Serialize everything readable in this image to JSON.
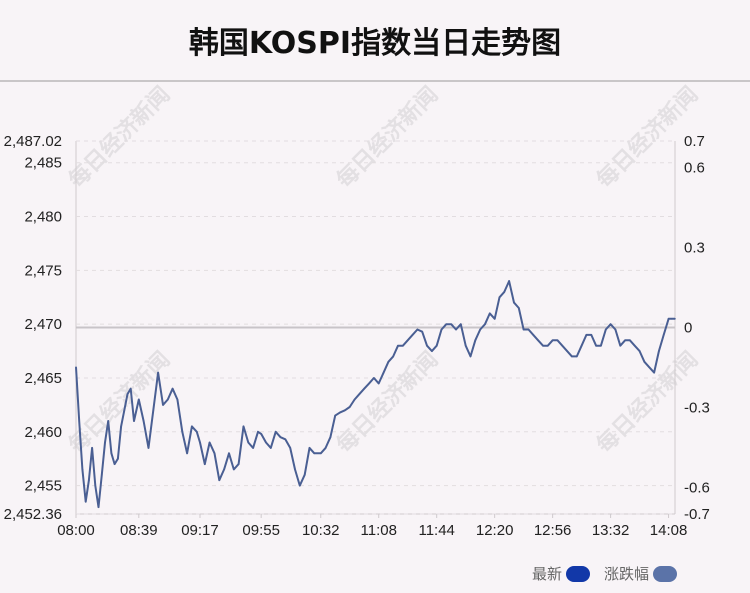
{
  "title": "韩国KOSPI指数当日走势图",
  "watermark": "每日经济新闻",
  "legend": [
    {
      "label": "最新",
      "color": "#1238a8"
    },
    {
      "label": "涨跌幅",
      "color": "#5b73a8"
    }
  ],
  "colors": {
    "line": "#4a5f93",
    "zero_line": "#c8c4c8",
    "grid": "#e2dde0"
  },
  "chart_data": {
    "type": "line",
    "title": "韩国KOSPI指数当日走势图",
    "x_tick_labels": [
      "08:00",
      "08:39",
      "09:17",
      "09:55",
      "10:32",
      "11:08",
      "11:44",
      "12:20",
      "12:56",
      "13:32",
      "14:08"
    ],
    "x_range": [
      "08:00",
      "14:12"
    ],
    "y_left_ticks": [
      "2,487.02",
      "2,485",
      "2,480",
      "2,475",
      "2,470",
      "2,465",
      "2,460",
      "2,455",
      "2,452.36"
    ],
    "y_left_range": [
      2452.36,
      2487.02
    ],
    "y_right_ticks": [
      "0.7",
      "0.6",
      "0.3",
      "0",
      "-0.3",
      "-0.6",
      "-0.7"
    ],
    "y_right_range": [
      -0.7,
      0.7
    ],
    "reference_level": 2469.69,
    "grid": true,
    "series": [
      {
        "name": "最新",
        "x": [
          "08:00",
          "08:02",
          "08:04",
          "08:06",
          "08:08",
          "08:10",
          "08:12",
          "08:14",
          "08:16",
          "08:18",
          "08:20",
          "08:22",
          "08:24",
          "08:26",
          "08:28",
          "08:30",
          "08:32",
          "08:34",
          "08:36",
          "08:39",
          "08:42",
          "08:45",
          "08:48",
          "08:51",
          "08:54",
          "08:57",
          "09:00",
          "09:03",
          "09:06",
          "09:09",
          "09:12",
          "09:15",
          "09:17",
          "09:20",
          "09:23",
          "09:26",
          "09:29",
          "09:32",
          "09:35",
          "09:38",
          "09:41",
          "09:44",
          "09:47",
          "09:50",
          "09:53",
          "09:55",
          "09:58",
          "10:01",
          "10:04",
          "10:07",
          "10:10",
          "10:13",
          "10:16",
          "10:19",
          "10:22",
          "10:25",
          "10:28",
          "10:32",
          "10:35",
          "10:38",
          "10:41",
          "10:44",
          "10:47",
          "10:50",
          "10:53",
          "10:56",
          "10:59",
          "11:02",
          "11:05",
          "11:08",
          "11:11",
          "11:14",
          "11:17",
          "11:20",
          "11:23",
          "11:26",
          "11:29",
          "11:32",
          "11:35",
          "11:38",
          "11:41",
          "11:44",
          "11:47",
          "11:50",
          "11:53",
          "11:56",
          "11:59",
          "12:02",
          "12:05",
          "12:08",
          "12:11",
          "12:14",
          "12:17",
          "12:20",
          "12:23",
          "12:26",
          "12:29",
          "12:32",
          "12:35",
          "12:38",
          "12:41",
          "12:44",
          "12:47",
          "12:50",
          "12:53",
          "12:56",
          "12:59",
          "13:02",
          "13:05",
          "13:08",
          "13:11",
          "13:14",
          "13:17",
          "13:20",
          "13:23",
          "13:26",
          "13:29",
          "13:32",
          "13:35",
          "13:38",
          "13:41",
          "13:44",
          "13:47",
          "13:50",
          "13:53",
          "13:56",
          "13:59",
          "14:02",
          "14:05",
          "14:08",
          "14:10",
          "14:12"
        ],
        "values": [
          2466.0,
          2461.0,
          2456.5,
          2453.5,
          2455.5,
          2458.5,
          2455.0,
          2453.0,
          2456.0,
          2459.0,
          2461.0,
          2458.0,
          2457.0,
          2457.5,
          2460.5,
          2462.0,
          2463.5,
          2464.0,
          2461.0,
          2463.0,
          2461.0,
          2458.5,
          2462.0,
          2465.5,
          2462.5,
          2463.0,
          2464.0,
          2463.0,
          2460.0,
          2458.0,
          2460.5,
          2460.0,
          2459.0,
          2457.0,
          2459.0,
          2458.0,
          2455.5,
          2456.5,
          2458.0,
          2456.5,
          2457.0,
          2460.5,
          2459.0,
          2458.5,
          2460.0,
          2459.8,
          2459.0,
          2458.5,
          2460.0,
          2459.5,
          2459.3,
          2458.5,
          2456.5,
          2455.0,
          2456.0,
          2458.5,
          2458.0,
          2458.0,
          2458.5,
          2459.5,
          2461.5,
          2461.8,
          2462.0,
          2462.3,
          2463.0,
          2463.5,
          2464.0,
          2464.5,
          2465.0,
          2464.5,
          2465.5,
          2466.5,
          2467.0,
          2468.0,
          2468.0,
          2468.5,
          2469.0,
          2469.5,
          2469.3,
          2468.0,
          2467.5,
          2468.0,
          2469.5,
          2470.0,
          2470.0,
          2469.5,
          2470.0,
          2468.0,
          2467.0,
          2468.5,
          2469.5,
          2470.0,
          2471.0,
          2470.5,
          2472.5,
          2473.0,
          2474.0,
          2472.0,
          2471.5,
          2469.5,
          2469.5,
          2469.0,
          2468.5,
          2468.0,
          2468.0,
          2468.5,
          2468.5,
          2468.0,
          2467.5,
          2467.0,
          2467.0,
          2468.0,
          2469.0,
          2469.0,
          2468.0,
          2468.0,
          2469.5,
          2470.0,
          2469.5,
          2468.0,
          2468.5,
          2468.5,
          2468.0,
          2467.5,
          2466.5,
          2466.0,
          2465.5,
          2467.5,
          2469.0,
          2470.5,
          2470.5,
          2470.5
        ]
      }
    ]
  }
}
